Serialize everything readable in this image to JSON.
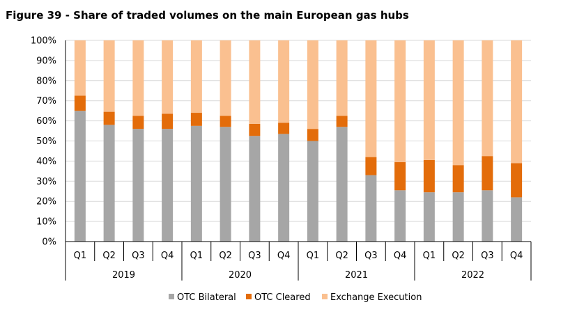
{
  "figure": {
    "title": "Figure 39 - Share of traded volumes on the main European gas hubs"
  },
  "chart_data": {
    "type": "bar",
    "stacked": true,
    "quarters": [
      "Q1",
      "Q2",
      "Q3",
      "Q4",
      "Q1",
      "Q2",
      "Q3",
      "Q4",
      "Q1",
      "Q2",
      "Q3",
      "Q4",
      "Q1",
      "Q2",
      "Q3",
      "Q4"
    ],
    "years": [
      "2019",
      "2020",
      "2021",
      "2022"
    ],
    "y_ticks": [
      "0%",
      "10%",
      "20%",
      "30%",
      "40%",
      "50%",
      "60%",
      "70%",
      "80%",
      "90%",
      "100%"
    ],
    "ylim": [
      0,
      100
    ],
    "grid": true,
    "legend_position": "bottom",
    "series": [
      {
        "name": "OTC Bilateral",
        "color": "#a6a6a6",
        "values": [
          65,
          58,
          56,
          56,
          57.5,
          57,
          52.5,
          53.5,
          50,
          57,
          33,
          25.5,
          24.5,
          24.5,
          25.5,
          22
        ]
      },
      {
        "name": "OTC Cleared",
        "color": "#e36c0a",
        "values": [
          7.5,
          6.5,
          6.5,
          7.5,
          6.5,
          5.5,
          6,
          5.5,
          6,
          5.5,
          9,
          14,
          16,
          13.5,
          17,
          17
        ]
      },
      {
        "name": "Exchange Execution",
        "color": "#fac090",
        "values": [
          27.5,
          35.5,
          37.5,
          36.5,
          36,
          37.5,
          41.5,
          41,
          44,
          37.5,
          58,
          60.5,
          59.5,
          62,
          57.5,
          61
        ]
      }
    ]
  }
}
